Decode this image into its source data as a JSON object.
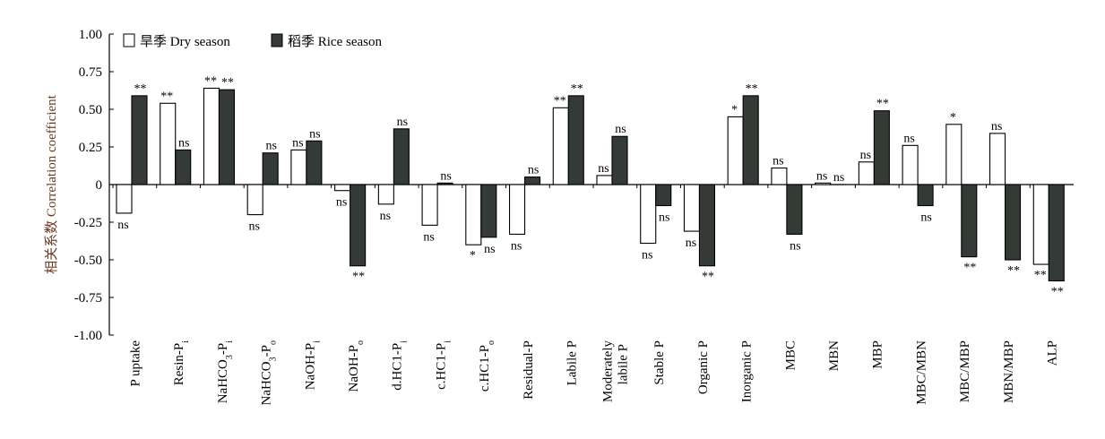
{
  "chart_data": {
    "type": "bar",
    "ylabel": "相关系数 Correlation coefficient",
    "ylim": [
      -1.0,
      1.0
    ],
    "yticks": [
      "1.00",
      "0.75",
      "0.50",
      "0.25",
      "0",
      "-0.25",
      "-0.50",
      "-0.75",
      "-1.00"
    ],
    "ytick_values": [
      1.0,
      0.75,
      0.5,
      0.25,
      0,
      -0.25,
      -0.5,
      -0.75,
      -1.0
    ],
    "legend_position": "top-left",
    "categories": [
      {
        "main": "P uptake"
      },
      {
        "main": "Resin-P",
        "sub": "i"
      },
      {
        "main": "NaHCO",
        "sub1": "3",
        "mid": "-P",
        "sub": "i"
      },
      {
        "main": "NaHCO",
        "sub1": "3",
        "mid": "-P",
        "sub": "o"
      },
      {
        "main": "NaOH-P",
        "sub": "i"
      },
      {
        "main": "NaOH-P",
        "sub": "o"
      },
      {
        "main": "d.HC1-P",
        "sub": "i"
      },
      {
        "main": "c.HC1-P",
        "sub": "i"
      },
      {
        "main": "c.HC1-P",
        "sub": "o"
      },
      {
        "main": "Residual-P"
      },
      {
        "main": "Labile P"
      },
      {
        "main": "Moderately",
        "line2": "labile P"
      },
      {
        "main": "Stable P"
      },
      {
        "main": "Organic P"
      },
      {
        "main": "Inorganic P"
      },
      {
        "main": "MBC"
      },
      {
        "main": "MBN"
      },
      {
        "main": "MBP"
      },
      {
        "main": "MBC/MBN"
      },
      {
        "main": "MBC/MBP"
      },
      {
        "main": "MBN/MBP"
      },
      {
        "main": "ALP"
      }
    ],
    "series": [
      {
        "name": "旱季 Dry season",
        "color": "#ffffff",
        "values": [
          -0.19,
          0.54,
          0.64,
          -0.2,
          0.23,
          -0.04,
          -0.13,
          -0.27,
          -0.4,
          -0.33,
          0.51,
          0.06,
          -0.39,
          -0.31,
          0.45,
          0.11,
          0.01,
          0.15,
          0.26,
          0.4,
          0.34,
          -0.53
        ],
        "sig": [
          "ns",
          "**",
          "**",
          "ns",
          "ns",
          "ns",
          "ns",
          "ns",
          "*",
          "ns",
          "**",
          "ns",
          "ns",
          "ns",
          "*",
          "ns",
          "ns",
          "ns",
          "ns",
          "*",
          "ns",
          "**"
        ]
      },
      {
        "name": "稻季 Rice season",
        "color": "#343a36",
        "values": [
          0.59,
          0.23,
          0.63,
          0.21,
          0.29,
          -0.54,
          0.37,
          0.01,
          -0.35,
          0.05,
          0.59,
          0.32,
          -0.14,
          -0.54,
          0.59,
          -0.33,
          0.0,
          0.49,
          -0.14,
          -0.48,
          -0.5,
          -0.64
        ],
        "sig": [
          "**",
          "ns",
          "**",
          "ns",
          "ns",
          "**",
          "ns",
          "ns",
          "ns",
          "ns",
          "**",
          "ns",
          "ns",
          "**",
          "**",
          "ns",
          "ns",
          "**",
          "ns",
          "**",
          "**",
          "**"
        ]
      }
    ]
  }
}
